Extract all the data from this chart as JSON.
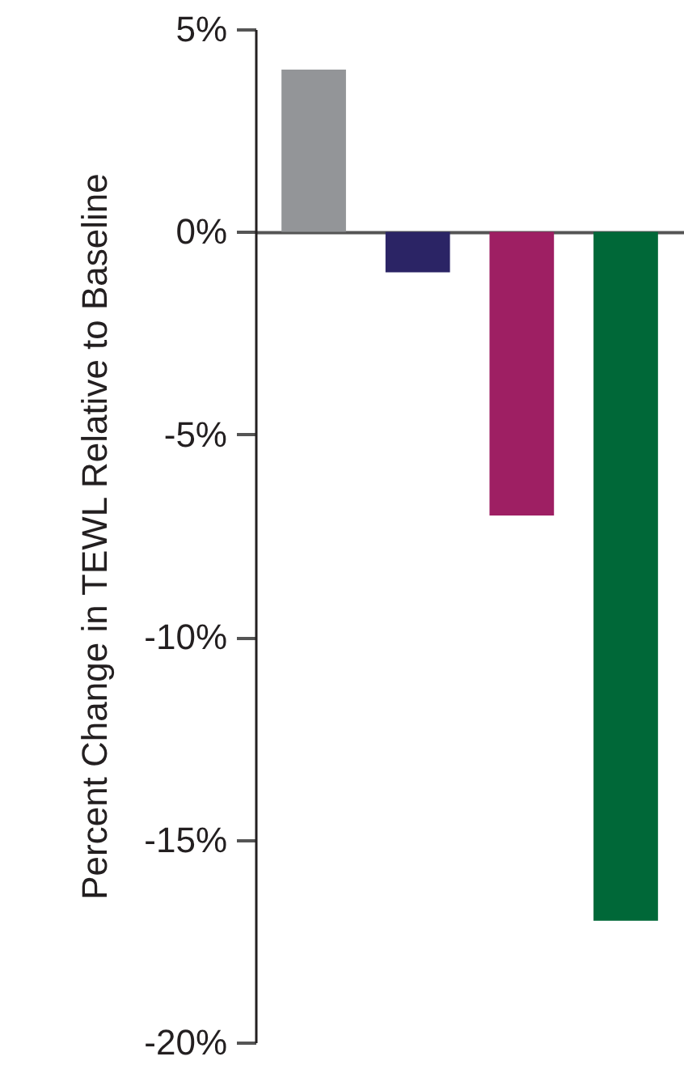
{
  "chart_data": {
    "type": "bar",
    "ylabel": "Percent Change in TEWL Relative to Baseline",
    "categories": [
      null,
      null,
      null,
      null
    ],
    "values": [
      4,
      -1,
      -7,
      -17
    ],
    "colors": [
      "#939598",
      "#2b2465",
      "#9e1f63",
      "#006838"
    ],
    "ylim": [
      -20,
      5
    ],
    "yticks": [
      {
        "value": 5,
        "label": "5%"
      },
      {
        "value": 0,
        "label": "0%"
      },
      {
        "value": -5,
        "label": "-5%"
      },
      {
        "value": -10,
        "label": "-10%"
      },
      {
        "value": -15,
        "label": "-15%"
      },
      {
        "value": -20,
        "label": "-20%"
      }
    ],
    "relative": false
  }
}
